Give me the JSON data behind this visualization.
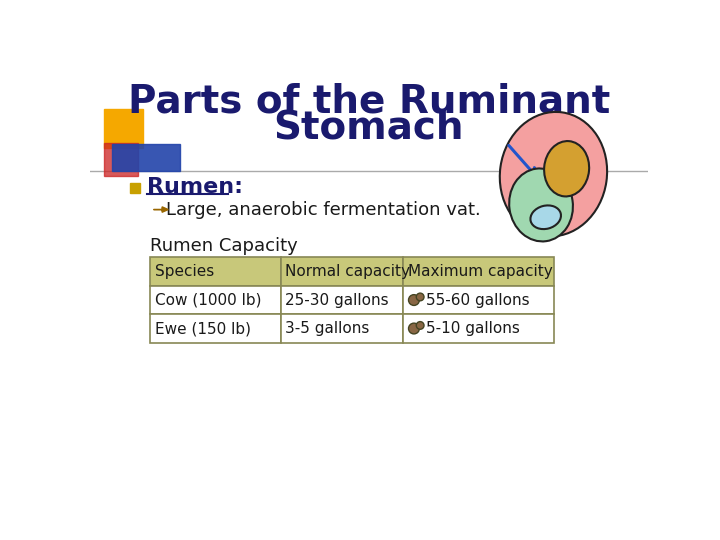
{
  "title_line1": "Parts of the Ruminant",
  "title_line2": "Stomach",
  "title_color": "#1a1a6e",
  "title_fontsize": 28,
  "background_color": "#ffffff",
  "bullet_label": "Rumen:",
  "bullet_sub": "Large, anaerobic fermentation vat.",
  "table_title": "Rumen Capacity",
  "table_header": [
    "Species",
    "Normal capacity",
    "Maximum capacity"
  ],
  "table_rows": [
    [
      "Cow (1000 lb)",
      "25-30 gallons",
      "55-60 gallons"
    ],
    [
      "Ewe (150 lb)",
      "3-5 gallons",
      "5-10 gallons"
    ]
  ],
  "header_bg": "#c8c87a",
  "row_bg": "#ffffff",
  "table_border": "#888855",
  "deco_square1_color": "#f5a800",
  "deco_square2_color": "#cc2222",
  "deco_rect_color": "#2244aa",
  "separator_color": "#aaaaaa"
}
